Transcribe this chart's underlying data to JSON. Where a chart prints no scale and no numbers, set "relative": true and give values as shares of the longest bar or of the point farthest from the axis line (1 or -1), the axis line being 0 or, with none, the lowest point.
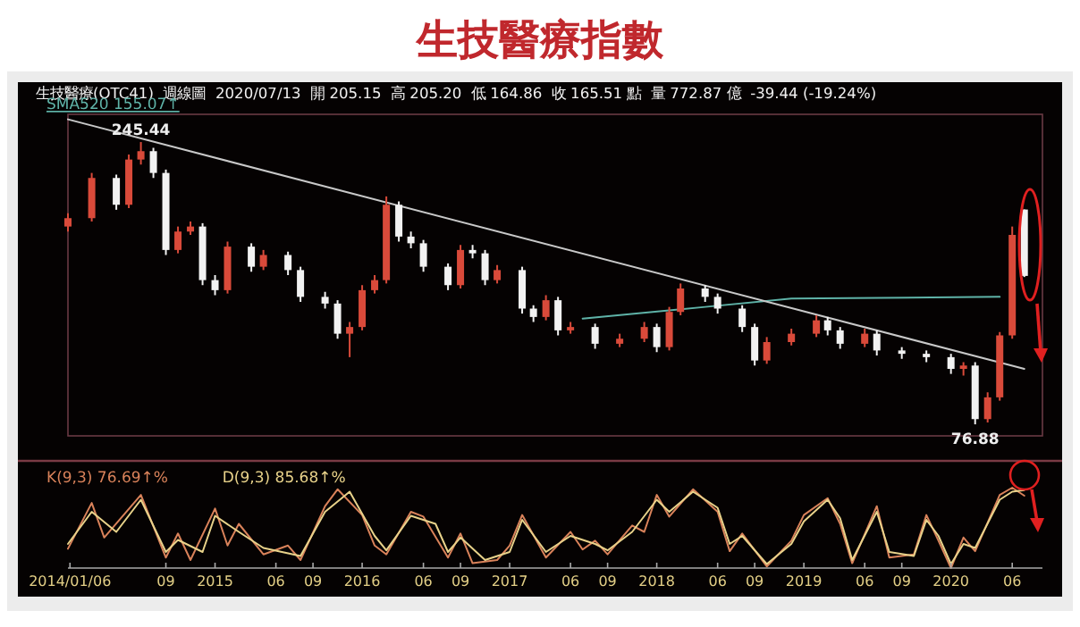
{
  "chart_data": [
    {
      "type": "candlestick",
      "title": "生技醫療指數",
      "subtitle": "生技醫療(OTC41)  週線圖  2020/07/13  開 205.15  高 205.20  低 164.86  收 165.51 點  量 772.87 億  -39.44 (-19.24%)",
      "x": [
        "2014-01",
        "2014-03",
        "2014-05",
        "2014-06",
        "2014-07",
        "2014-08",
        "2014-09",
        "2014-10",
        "2014-11",
        "2014-12",
        "2015-01",
        "2015-02",
        "2015-04",
        "2015-05",
        "2015-07",
        "2015-08",
        "2015-10",
        "2015-11",
        "2015-12",
        "2016-01",
        "2016-02",
        "2016-03",
        "2016-04",
        "2016-05",
        "2016-06",
        "2016-08",
        "2016-09",
        "2016-10",
        "2016-11",
        "2016-12",
        "2017-02",
        "2017-03",
        "2017-04",
        "2017-05",
        "2017-06",
        "2017-08",
        "2017-10",
        "2017-12",
        "2018-01",
        "2018-02",
        "2018-03",
        "2018-05",
        "2018-06",
        "2018-08",
        "2018-09",
        "2018-10",
        "2018-12",
        "2019-02",
        "2019-03",
        "2019-04",
        "2019-06",
        "2019-07",
        "2019-09",
        "2019-11",
        "2020-01",
        "2020-02",
        "2020-03",
        "2020-04",
        "2020-05",
        "2020-06",
        "2020-07"
      ],
      "ohlc": [
        [
          195,
          203,
          192,
          200
        ],
        [
          200,
          227,
          198,
          224
        ],
        [
          224,
          226,
          205,
          208
        ],
        [
          208,
          238,
          206,
          235
        ],
        [
          235,
          245.44,
          232,
          240
        ],
        [
          240,
          242,
          224,
          227
        ],
        [
          227,
          229,
          178,
          181
        ],
        [
          181,
          195,
          179,
          192
        ],
        [
          192,
          198,
          190,
          195
        ],
        [
          195,
          197,
          160,
          163
        ],
        [
          163,
          166,
          154,
          157
        ],
        [
          157,
          186,
          155,
          183
        ],
        [
          183,
          185,
          168,
          171
        ],
        [
          171,
          181,
          169,
          178
        ],
        [
          178,
          180,
          166,
          169
        ],
        [
          169,
          171,
          150,
          153
        ],
        [
          153,
          156,
          146,
          149
        ],
        [
          149,
          151,
          128,
          131
        ],
        [
          131,
          138,
          117,
          135
        ],
        [
          135,
          160,
          133,
          157
        ],
        [
          157,
          166,
          155,
          163
        ],
        [
          163,
          213,
          161,
          208
        ],
        [
          208,
          210,
          186,
          189
        ],
        [
          189,
          192,
          182,
          185
        ],
        [
          185,
          187,
          168,
          171
        ],
        [
          171,
          173,
          157,
          160
        ],
        [
          160,
          184,
          158,
          181
        ],
        [
          181,
          184,
          176,
          179
        ],
        [
          179,
          181,
          160,
          163
        ],
        [
          163,
          172,
          161,
          169
        ],
        [
          169,
          171,
          143,
          146
        ],
        [
          146,
          148,
          138,
          141
        ],
        [
          141,
          154,
          139,
          151
        ],
        [
          151,
          153,
          130,
          133
        ],
        [
          133,
          138,
          131,
          135
        ],
        [
          135,
          137,
          122,
          125
        ],
        [
          125,
          131,
          123,
          128
        ],
        [
          128,
          138,
          126,
          135
        ],
        [
          135,
          137,
          120,
          123
        ],
        [
          123,
          147,
          121,
          144
        ],
        [
          144,
          161,
          142,
          158
        ],
        [
          158,
          160,
          150,
          153
        ],
        [
          153,
          155,
          143,
          146
        ],
        [
          146,
          148,
          132,
          135
        ],
        [
          135,
          137,
          112,
          115
        ],
        [
          115,
          129,
          113,
          126
        ],
        [
          126,
          134,
          124,
          131
        ],
        [
          131,
          142,
          129,
          139
        ],
        [
          139,
          141,
          130,
          133
        ],
        [
          133,
          135,
          122,
          125
        ],
        [
          125,
          134,
          123,
          131
        ],
        [
          131,
          133,
          118,
          121
        ],
        [
          121,
          123,
          116,
          119
        ],
        [
          119,
          121,
          114,
          117
        ],
        [
          117,
          119,
          107,
          110
        ],
        [
          110,
          114,
          106,
          112
        ],
        [
          112,
          114,
          76.88,
          80
        ],
        [
          80,
          96,
          78,
          93
        ],
        [
          93,
          132,
          91,
          130
        ],
        [
          130,
          195,
          128,
          190
        ],
        [
          205.15,
          205.2,
          164.86,
          165.51
        ]
      ],
      "colors": [
        "#d94a3a",
        "#d94a3a",
        "#f2f2f2",
        "#d94a3a",
        "#d94a3a",
        "#f2f2f2",
        "#f2f2f2",
        "#d94a3a",
        "#d94a3a",
        "#f2f2f2",
        "#f2f2f2",
        "#d94a3a",
        "#f2f2f2",
        "#d94a3a",
        "#f2f2f2",
        "#f2f2f2",
        "#f2f2f2",
        "#f2f2f2",
        "#d94a3a",
        "#d94a3a",
        "#d94a3a",
        "#d94a3a",
        "#f2f2f2",
        "#f2f2f2",
        "#f2f2f2",
        "#f2f2f2",
        "#d94a3a",
        "#f2f2f2",
        "#f2f2f2",
        "#d94a3a",
        "#f2f2f2",
        "#f2f2f2",
        "#d94a3a",
        "#f2f2f2",
        "#d94a3a",
        "#f2f2f2",
        "#d94a3a",
        "#d94a3a",
        "#f2f2f2",
        "#d94a3a",
        "#d94a3a",
        "#f2f2f2",
        "#f2f2f2",
        "#f2f2f2",
        "#f2f2f2",
        "#d94a3a",
        "#d94a3a",
        "#d94a3a",
        "#f2f2f2",
        "#f2f2f2",
        "#d94a3a",
        "#f2f2f2",
        "#f2f2f2",
        "#f2f2f2",
        "#f2f2f2",
        "#d94a3a",
        "#f2f2f2",
        "#d94a3a",
        "#d94a3a",
        "#d94a3a",
        "#f2f2f2"
      ],
      "series": [
        {
          "type": "line",
          "name": "SMA520 155.07↑",
          "color": "#5fb3a8",
          "x": [
            "2017-07",
            "2018-05",
            "2018-12",
            "2020-05"
          ],
          "values": [
            140,
            147,
            152,
            153
          ]
        },
        {
          "type": "line",
          "color": "#c8c8c8",
          "x": [
            "2014-01",
            "2020-07"
          ],
          "values": [
            259,
            110
          ]
        }
      ],
      "xlim": [
        "2014-01-01",
        "2020-08-15"
      ],
      "ylim": [
        70,
        262
      ],
      "tick_labels": false,
      "legend": "top left",
      "annotations": [
        {
          "text": "245.44",
          "x": "2014-07",
          "y": 245.44
        },
        {
          "text": "76.88",
          "x": "2020-03",
          "y": 76.88
        }
      ]
    },
    {
      "type": "line",
      "relative": true,
      "tick_labels": "x",
      "legend": "top left",
      "xlim": [
        "2014-01-01",
        "2020-08-15"
      ],
      "xticks": [
        {
          "value": "2014-01-06",
          "label": "2014/01/06"
        },
        {
          "value": "2014-09",
          "label": "09"
        },
        {
          "value": "2015",
          "label": "2015"
        },
        {
          "value": "2015-06",
          "label": "06"
        },
        {
          "value": "2015-09",
          "label": "09"
        },
        {
          "value": "2016",
          "label": "2016"
        },
        {
          "value": "2016-06",
          "label": "06"
        },
        {
          "value": "2016-09",
          "label": "09"
        },
        {
          "value": "2017",
          "label": "2017"
        },
        {
          "value": "2017-06",
          "label": "06"
        },
        {
          "value": "2017-09",
          "label": "09"
        },
        {
          "value": "2018",
          "label": "2018"
        },
        {
          "value": "2018-06",
          "label": "06"
        },
        {
          "value": "2018-09",
          "label": "09"
        },
        {
          "value": "2019",
          "label": "2019"
        },
        {
          "value": "2019-06",
          "label": "06"
        },
        {
          "value": "2019-09",
          "label": "09"
        },
        {
          "value": "2020",
          "label": "2020"
        },
        {
          "value": "2020-06",
          "label": "06"
        }
      ],
      "series": [
        {
          "name": "K(9,3) 76.69↑%",
          "color": "#d9825a",
          "x": [
            "2014-01",
            "2014-03",
            "2014-04",
            "2014-07",
            "2014-09",
            "2014-10",
            "2014-11",
            "2015-01",
            "2015-02",
            "2015-03",
            "2015-05",
            "2015-07",
            "2015-08",
            "2015-10",
            "2015-11",
            "2016-01",
            "2016-02",
            "2016-03",
            "2016-05",
            "2016-06",
            "2016-08",
            "2016-09",
            "2016-10",
            "2016-12",
            "2017-01",
            "2017-02",
            "2017-04",
            "2017-06",
            "2017-07",
            "2017-08",
            "2017-09",
            "2017-11",
            "2017-12",
            "2018-01",
            "2018-02",
            "2018-04",
            "2018-06",
            "2018-07",
            "2018-08",
            "2018-10",
            "2018-12",
            "2019-01",
            "2019-03",
            "2019-04",
            "2019-05",
            "2019-07",
            "2019-08",
            "2019-10",
            "2019-11",
            "2019-12",
            "2020-01",
            "2020-02",
            "2020-03",
            "2020-05",
            "2020-06",
            "2020-07"
          ],
          "values": [
            0.24,
            0.81,
            0.38,
            0.91,
            0.13,
            0.43,
            0.1,
            0.74,
            0.28,
            0.55,
            0.17,
            0.28,
            0.1,
            0.77,
            0.98,
            0.66,
            0.28,
            0.17,
            0.7,
            0.64,
            0.13,
            0.43,
            0.06,
            0.1,
            0.28,
            0.66,
            0.13,
            0.45,
            0.23,
            0.34,
            0.17,
            0.53,
            0.45,
            0.91,
            0.64,
            0.98,
            0.7,
            0.21,
            0.43,
            0.02,
            0.34,
            0.66,
            0.87,
            0.55,
            0.06,
            0.77,
            0.13,
            0.17,
            0.66,
            0.34,
            0,
            0.38,
            0.21,
            0.91,
            1,
            0.9
          ]
        },
        {
          "name": "D(9,3) 85.68↑%",
          "color": "#e8d28a",
          "x": [
            "2014-01",
            "2014-03",
            "2014-05",
            "2014-07",
            "2014-09",
            "2014-10",
            "2014-12",
            "2015-01",
            "2015-03",
            "2015-05",
            "2015-08",
            "2015-10",
            "2015-12",
            "2016-02",
            "2016-03",
            "2016-05",
            "2016-07",
            "2016-08",
            "2016-09",
            "2016-11",
            "2017-01",
            "2017-02",
            "2017-04",
            "2017-06",
            "2017-08",
            "2017-09",
            "2017-11",
            "2018-01",
            "2018-02",
            "2018-04",
            "2018-06",
            "2018-07",
            "2018-08",
            "2018-10",
            "2018-12",
            "2019-01",
            "2019-03",
            "2019-04",
            "2019-05",
            "2019-07",
            "2019-08",
            "2019-10",
            "2019-11",
            "2019-12",
            "2020-01",
            "2020-02",
            "2020-03",
            "2020-05",
            "2020-06",
            "2020-07"
          ],
          "values": [
            0.3,
            0.7,
            0.45,
            0.85,
            0.2,
            0.35,
            0.2,
            0.65,
            0.45,
            0.25,
            0.15,
            0.7,
            0.95,
            0.4,
            0.22,
            0.65,
            0.55,
            0.2,
            0.38,
            0.1,
            0.2,
            0.6,
            0.2,
            0.4,
            0.3,
            0.22,
            0.45,
            0.85,
            0.7,
            0.95,
            0.75,
            0.3,
            0.4,
            0.05,
            0.3,
            0.58,
            0.85,
            0.62,
            0.1,
            0.7,
            0.2,
            0.15,
            0.6,
            0.4,
            0.05,
            0.3,
            0.25,
            0.85,
            0.95,
            0.97
          ]
        }
      ]
    }
  ]
}
